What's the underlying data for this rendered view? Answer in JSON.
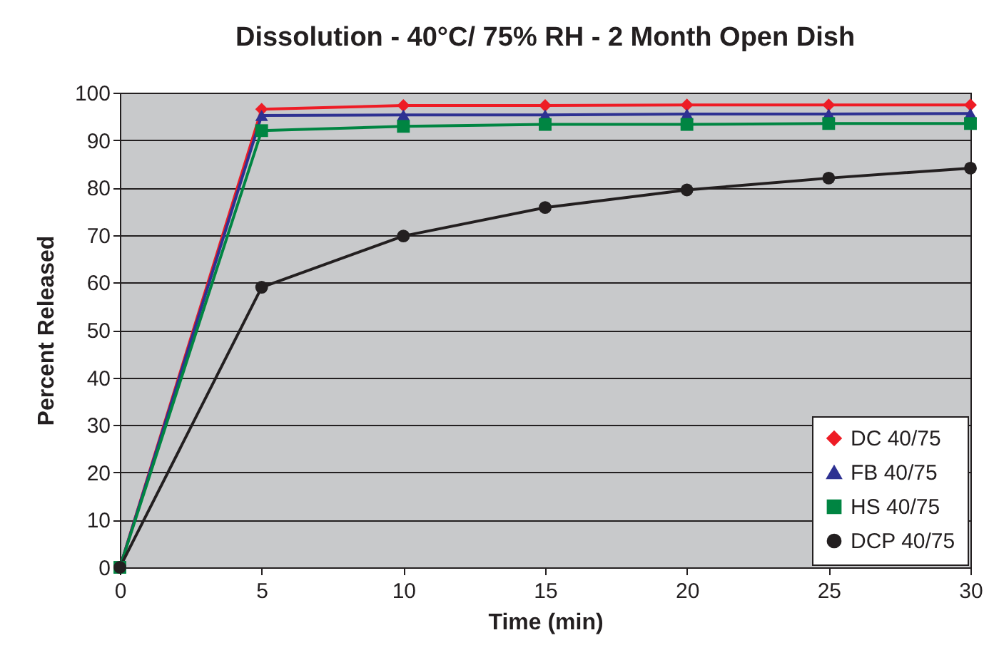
{
  "chart_data": {
    "type": "line",
    "title": "Dissolution - 40°C/ 75% RH - 2 Month Open Dish",
    "xlabel": "Time (min)",
    "ylabel": "Percent Released",
    "x": [
      0,
      5,
      10,
      15,
      20,
      25,
      30
    ],
    "series": [
      {
        "name": "DC 40/75",
        "color": "#ee1c25",
        "marker": "diamond",
        "values": [
          0,
          96.5,
          97.3,
          97.3,
          97.4,
          97.4,
          97.4
        ]
      },
      {
        "name": "FB 40/75",
        "color": "#2e3192",
        "marker": "triangle",
        "values": [
          0,
          95.2,
          95.3,
          95.3,
          95.5,
          95.5,
          95.6
        ]
      },
      {
        "name": "HS 40/75",
        "color": "#008542",
        "marker": "square",
        "values": [
          0,
          92,
          92.9,
          93.3,
          93.3,
          93.5,
          93.5
        ]
      },
      {
        "name": "DCP 40/75",
        "color": "#231f20",
        "marker": "circle",
        "values": [
          0,
          59,
          69.8,
          75.8,
          79.5,
          82,
          84.1
        ]
      }
    ],
    "xlim": [
      0,
      30
    ],
    "xticks": [
      0,
      5,
      10,
      15,
      20,
      25,
      30
    ],
    "ylim": [
      0,
      100
    ],
    "yticks": [
      0,
      10,
      20,
      30,
      40,
      50,
      60,
      70,
      80,
      90,
      100
    ],
    "grid": "y",
    "legend": "bottom right",
    "line_style": "solid"
  }
}
